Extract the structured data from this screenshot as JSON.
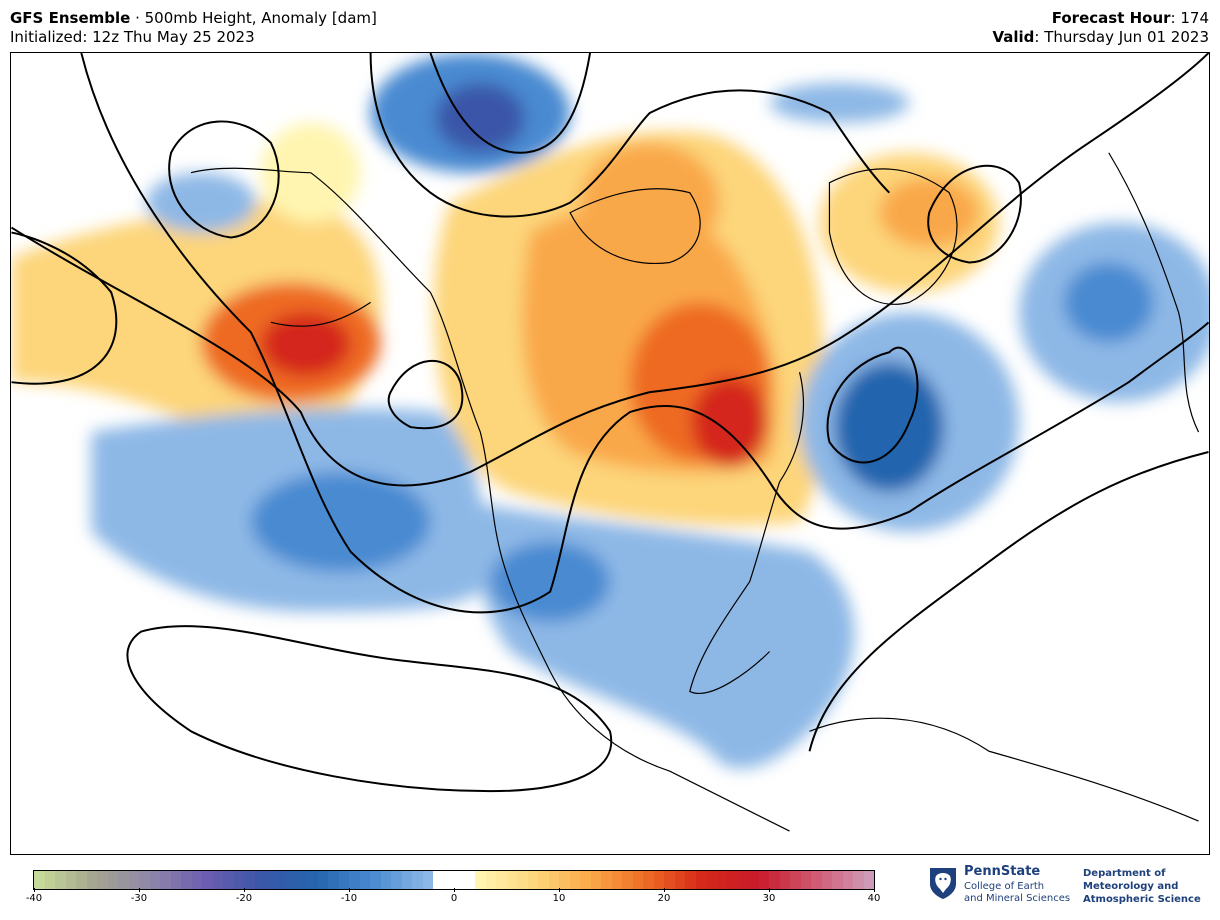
{
  "header": {
    "model": "GFS Ensemble",
    "separator": " · ",
    "product": "500mb Height, Anomaly [dam]",
    "initialized_label": "Initialized",
    "initialized_value": "12z Thu May 25 2023",
    "forecast_hour_label": "Forecast Hour",
    "forecast_hour_value": "174",
    "valid_label": "Valid",
    "valid_value": "Thursday Jun 01 2023"
  },
  "colorbar": {
    "range": [
      -40,
      40
    ],
    "ticks": [
      "-40",
      "-30",
      "-20",
      "-10",
      "0",
      "10",
      "20",
      "30",
      "40"
    ],
    "negative_colors": [
      "#c5d998",
      "#a4a490",
      "#8f86a8",
      "#6c5db0",
      "#3a57a8",
      "#2465ae",
      "#4a8ad1",
      "#8db8e6"
    ],
    "neutral_color": "#ffffff",
    "positive_colors": [
      "#fff5b0",
      "#fdd57a",
      "#f9a848",
      "#ee6a24",
      "#d4281a",
      "#c81a2a",
      "#cf5870",
      "#cf9ab8"
    ]
  },
  "branding": {
    "university": "PennState",
    "college_line1": "College of Earth",
    "college_line2": "and Mineral Sciences",
    "dept_line1": "Department of",
    "dept_line2": "Meteorology and",
    "dept_line3": "Atmospheric Science"
  }
}
